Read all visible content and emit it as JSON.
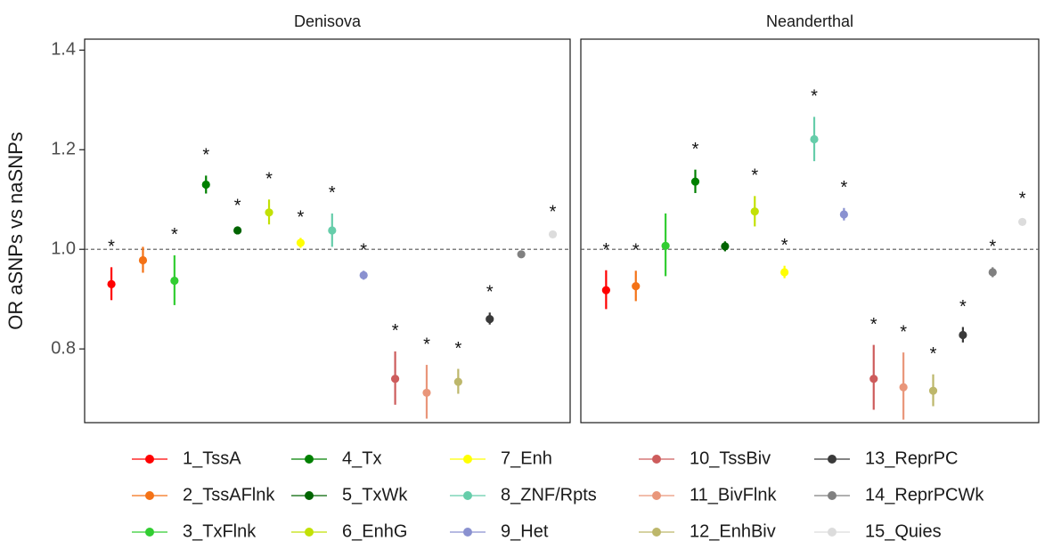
{
  "chart_data": {
    "type": "scatter",
    "ylabel": "OR aSNPs vs naSNPs",
    "xlabel": "",
    "ylim": [
      0.652,
      1.422
    ],
    "y_ticks": [
      0.8,
      1.0,
      1.2,
      1.4
    ],
    "y_tick_labels": [
      "0.8",
      "1.0",
      "1.2",
      "1.4"
    ],
    "reference_line": {
      "y": 1.0,
      "style": "dashed"
    },
    "grid": false,
    "legend_position": "bottom",
    "significance_marker": "*",
    "categories": [
      "1_TssA",
      "2_TssAFlnk",
      "3_TxFlnk",
      "4_Tx",
      "5_TxWk",
      "6_EnhG",
      "7_Enh",
      "8_ZNF/Rpts",
      "9_Het",
      "10_TssBiv",
      "11_BivFlnk",
      "12_EnhBiv",
      "13_ReprPC",
      "14_ReprPCWk",
      "15_Quies"
    ],
    "colors": [
      "#ff0000",
      "#f47216",
      "#32cd32",
      "#008000",
      "#006400",
      "#c2e105",
      "#ffff00",
      "#66cdaa",
      "#8a91d0",
      "#cd5c5c",
      "#e9967a",
      "#bdb76b",
      "#3a3a3a",
      "#808080",
      "#dcdcdc"
    ],
    "panels": [
      {
        "name": "Denisova",
        "points": [
          {
            "category": "1_TssA",
            "value": 0.93,
            "lower": 0.898,
            "upper": 0.964,
            "significant": true
          },
          {
            "category": "2_TssAFlnk",
            "value": 0.978,
            "lower": 0.953,
            "upper": 1.005,
            "significant": false
          },
          {
            "category": "3_TxFlnk",
            "value": 0.937,
            "lower": 0.888,
            "upper": 0.988,
            "significant": true
          },
          {
            "category": "4_Tx",
            "value": 1.13,
            "lower": 1.112,
            "upper": 1.148,
            "significant": true
          },
          {
            "category": "5_TxWk",
            "value": 1.038,
            "lower": 1.03,
            "upper": 1.046,
            "significant": true
          },
          {
            "category": "6_EnhG",
            "value": 1.074,
            "lower": 1.05,
            "upper": 1.1,
            "significant": true
          },
          {
            "category": "7_Enh",
            "value": 1.013,
            "lower": 1.003,
            "upper": 1.023,
            "significant": true
          },
          {
            "category": "8_ZNF/Rpts",
            "value": 1.038,
            "lower": 1.005,
            "upper": 1.072,
            "significant": true
          },
          {
            "category": "9_Het",
            "value": 0.948,
            "lower": 0.939,
            "upper": 0.957,
            "significant": true
          },
          {
            "category": "10_TssBiv",
            "value": 0.74,
            "lower": 0.688,
            "upper": 0.795,
            "significant": true
          },
          {
            "category": "11_BivFlnk",
            "value": 0.712,
            "lower": 0.66,
            "upper": 0.768,
            "significant": true
          },
          {
            "category": "12_EnhBiv",
            "value": 0.734,
            "lower": 0.71,
            "upper": 0.76,
            "significant": true
          },
          {
            "category": "13_ReprPC",
            "value": 0.86,
            "lower": 0.849,
            "upper": 0.873,
            "significant": true
          },
          {
            "category": "14_ReprPCWk",
            "value": 0.99,
            "lower": 0.983,
            "upper": 0.997,
            "significant": false
          },
          {
            "category": "15_Quies",
            "value": 1.03,
            "lower": 1.026,
            "upper": 1.034,
            "significant": true
          }
        ]
      },
      {
        "name": "Neanderthal",
        "points": [
          {
            "category": "1_TssA",
            "value": 0.918,
            "lower": 0.88,
            "upper": 0.958,
            "significant": true
          },
          {
            "category": "2_TssAFlnk",
            "value": 0.926,
            "lower": 0.896,
            "upper": 0.957,
            "significant": true
          },
          {
            "category": "3_TxFlnk",
            "value": 1.007,
            "lower": 0.946,
            "upper": 1.072,
            "significant": false
          },
          {
            "category": "4_Tx",
            "value": 1.136,
            "lower": 1.113,
            "upper": 1.16,
            "significant": true
          },
          {
            "category": "5_TxWk",
            "value": 1.006,
            "lower": 0.996,
            "upper": 1.016,
            "significant": false
          },
          {
            "category": "6_EnhG",
            "value": 1.076,
            "lower": 1.046,
            "upper": 1.107,
            "significant": true
          },
          {
            "category": "7_Enh",
            "value": 0.954,
            "lower": 0.942,
            "upper": 0.967,
            "significant": true
          },
          {
            "category": "8_ZNF/Rpts",
            "value": 1.221,
            "lower": 1.177,
            "upper": 1.266,
            "significant": true
          },
          {
            "category": "9_Het",
            "value": 1.07,
            "lower": 1.058,
            "upper": 1.083,
            "significant": true
          },
          {
            "category": "10_TssBiv",
            "value": 0.74,
            "lower": 0.678,
            "upper": 0.808,
            "significant": true
          },
          {
            "category": "11_BivFlnk",
            "value": 0.723,
            "lower": 0.658,
            "upper": 0.793,
            "significant": true
          },
          {
            "category": "12_EnhBiv",
            "value": 0.716,
            "lower": 0.685,
            "upper": 0.749,
            "significant": true
          },
          {
            "category": "13_ReprPC",
            "value": 0.828,
            "lower": 0.813,
            "upper": 0.844,
            "significant": true
          },
          {
            "category": "14_ReprPCWk",
            "value": 0.954,
            "lower": 0.944,
            "upper": 0.964,
            "significant": true
          },
          {
            "category": "15_Quies",
            "value": 1.055,
            "lower": 1.049,
            "upper": 1.061,
            "significant": true
          }
        ]
      }
    ]
  }
}
